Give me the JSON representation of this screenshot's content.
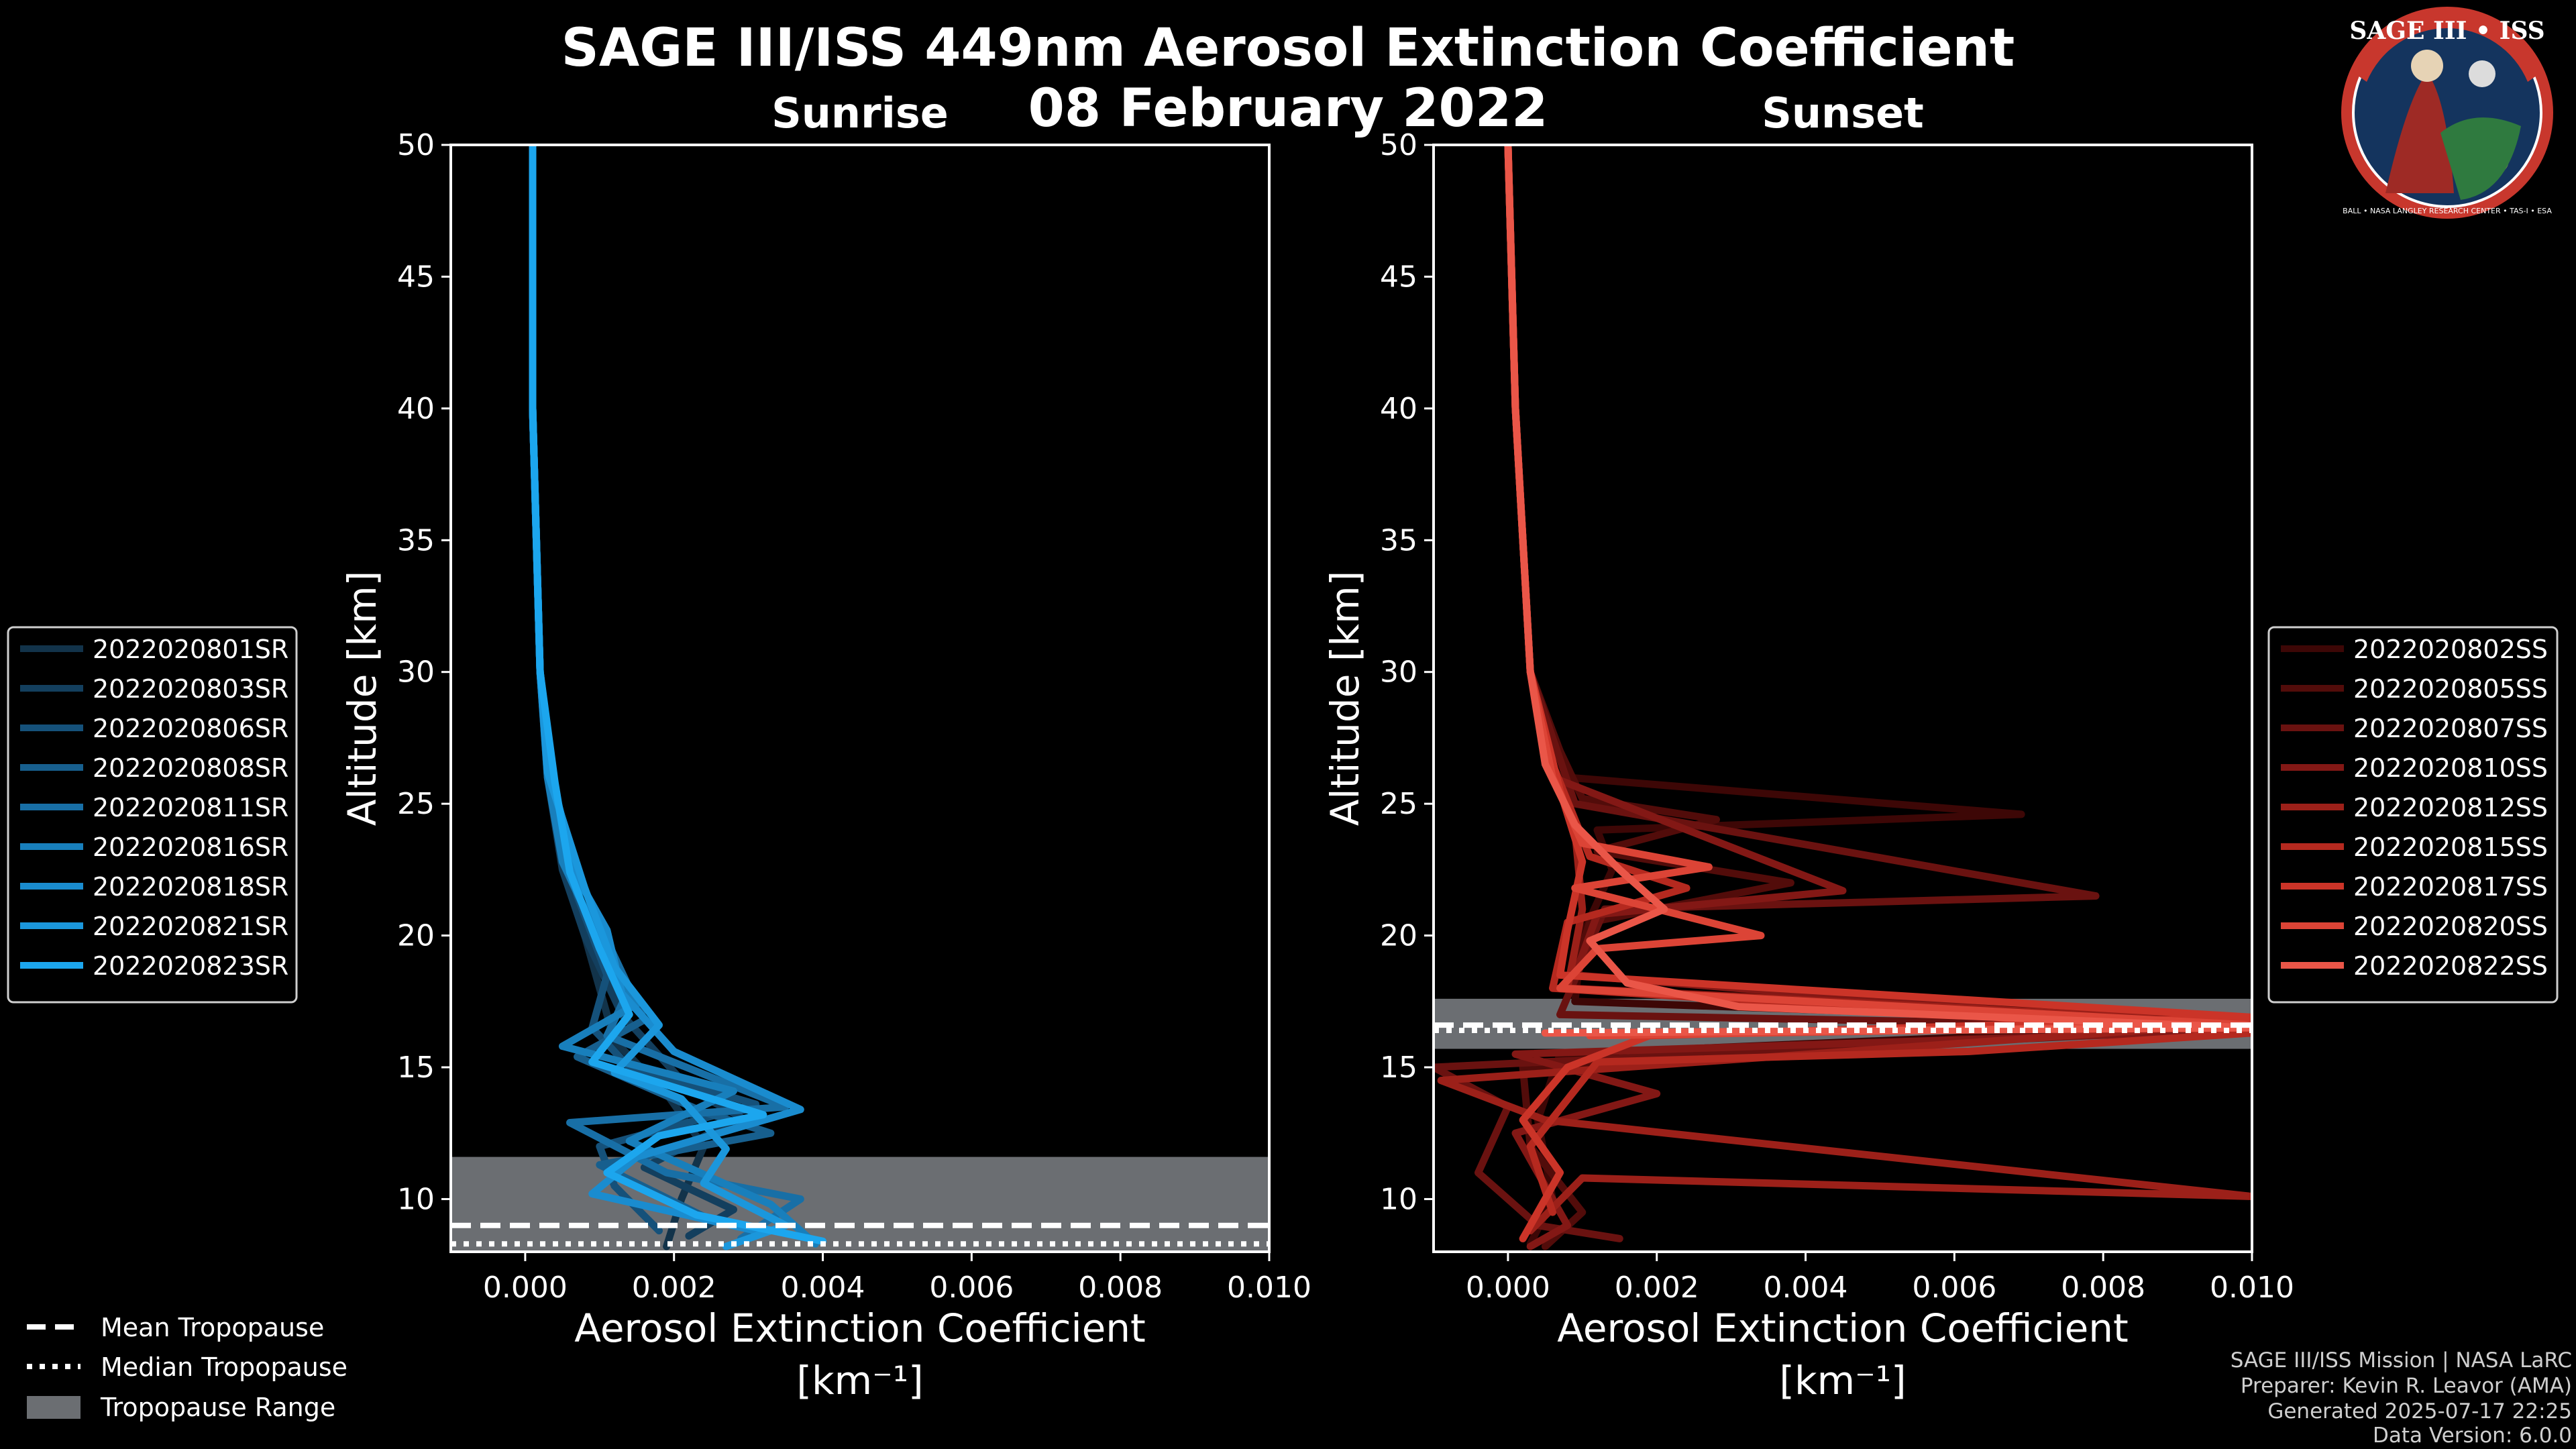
{
  "header": {
    "title": "SAGE III/ISS 449nm Aerosol Extinction Coefficient",
    "date": "08 February 2022"
  },
  "logo": {
    "text": "SAGE III • ISS",
    "caption": "BALL • NASA LANGLEY RESEARCH CENTER • TAS-I • ESA"
  },
  "footer": {
    "line1": "SAGE III/ISS Mission | NASA LaRC",
    "line2": "Preparer: Kevin R. Leavor (AMA)",
    "line3": "Generated 2025-07-17 22:25",
    "line4": "Data Version: 6.0.0"
  },
  "tropopause_legend": [
    "Mean Tropopause",
    "Median Tropopause",
    "Tropopause Range"
  ],
  "colors": {
    "background": "#000000",
    "sunrise": "#1a9ee0",
    "sunset": "#e8574a",
    "tropo_range": "#6b6e72"
  },
  "chart_data": [
    {
      "type": "line",
      "panel": "Sunrise",
      "title": "Sunrise",
      "xlabel": "Aerosol Extinction Coefficient",
      "xunit": "[km⁻¹]",
      "ylabel": "Altitude [km]",
      "xlim": [
        -0.001,
        0.01
      ],
      "ylim": [
        8,
        50
      ],
      "xticks": [
        "0.000",
        "0.002",
        "0.004",
        "0.006",
        "0.008",
        "0.010"
      ],
      "yticks": [
        "10",
        "15",
        "20",
        "25",
        "30",
        "35",
        "40",
        "45",
        "50"
      ],
      "tropopause": {
        "mean": 9.0,
        "median": 8.3,
        "range": [
          8.0,
          11.6
        ]
      },
      "series": [
        {
          "name": "2022020801SR",
          "color": "#12334a",
          "points": [
            [
              0.0001,
              50
            ],
            [
              0.0001,
              40
            ],
            [
              0.0002,
              30
            ],
            [
              0.0003,
              26
            ],
            [
              0.0006,
              22
            ],
            [
              0.0009,
              19
            ],
            [
              0.0012,
              16
            ],
            [
              0.0019,
              14
            ],
            [
              0.0024,
              12
            ],
            [
              0.0021,
              10
            ],
            [
              0.0019,
              8.2
            ]
          ]
        },
        {
          "name": "2022020803SR",
          "color": "#133f5e",
          "points": [
            [
              0.0001,
              50
            ],
            [
              0.0001,
              40
            ],
            [
              0.0002,
              30
            ],
            [
              0.0003,
              26
            ],
            [
              0.0005,
              22.5
            ],
            [
              0.0008,
              20
            ],
            [
              0.0013,
              17
            ],
            [
              0.0022,
              14.2
            ],
            [
              0.0029,
              13.1
            ],
            [
              0.0016,
              11.2
            ],
            [
              0.0028,
              9.6
            ],
            [
              0.0022,
              8.6
            ]
          ]
        },
        {
          "name": "2022020806SR",
          "color": "#15517a",
          "points": [
            [
              0.0001,
              50
            ],
            [
              0.0001,
              40
            ],
            [
              0.0002,
              30
            ],
            [
              0.0004,
              25
            ],
            [
              0.0007,
              21.5
            ],
            [
              0.0011,
              18.5
            ],
            [
              0.0009,
              16.5
            ],
            [
              0.0014,
              15
            ],
            [
              0.0031,
              13.6
            ],
            [
              0.001,
              12
            ],
            [
              0.0012,
              10.5
            ],
            [
              0.0018,
              8.8
            ]
          ]
        },
        {
          "name": "2022020808SR",
          "color": "#175f8e",
          "points": [
            [
              0.0001,
              50
            ],
            [
              0.0001,
              40
            ],
            [
              0.0002,
              30
            ],
            [
              0.0003,
              26.5
            ],
            [
              0.0006,
              23
            ],
            [
              0.0012,
              19.2
            ],
            [
              0.0016,
              16.8
            ],
            [
              0.0007,
              15.4
            ],
            [
              0.0024,
              13.3
            ],
            [
              0.0033,
              12.5
            ],
            [
              0.001,
              11.3
            ],
            [
              0.0025,
              9.2
            ]
          ]
        },
        {
          "name": "2022020811SR",
          "color": "#186fa6",
          "points": [
            [
              0.0001,
              50
            ],
            [
              0.0001,
              40
            ],
            [
              0.0002,
              30
            ],
            [
              0.0004,
              25
            ],
            [
              0.0009,
              21
            ],
            [
              0.0014,
              18
            ],
            [
              0.0011,
              16.2
            ],
            [
              0.0035,
              13.5
            ],
            [
              0.0006,
              12.9
            ],
            [
              0.0019,
              11
            ],
            [
              0.0037,
              10
            ],
            [
              0.0029,
              8.5
            ]
          ]
        },
        {
          "name": "2022020816SR",
          "color": "#187fbc",
          "points": [
            [
              0.0001,
              50
            ],
            [
              0.0001,
              40
            ],
            [
              0.0002,
              30
            ],
            [
              0.0003,
              26
            ],
            [
              0.0005,
              22.8
            ],
            [
              0.001,
              19.8
            ],
            [
              0.0015,
              17.4
            ],
            [
              0.0005,
              15.8
            ],
            [
              0.0028,
              14.1
            ],
            [
              0.0014,
              12.2
            ],
            [
              0.0033,
              9.8
            ],
            [
              0.0039,
              8.3
            ]
          ]
        },
        {
          "name": "2022020818SR",
          "color": "#1a8ccf",
          "points": [
            [
              0.0001,
              50
            ],
            [
              0.0001,
              40
            ],
            [
              0.0002,
              30
            ],
            [
              0.0004,
              25.5
            ],
            [
              0.0007,
              22.2
            ],
            [
              0.0011,
              20.2
            ],
            [
              0.0013,
              17.8
            ],
            [
              0.002,
              15.6
            ],
            [
              0.0037,
              13.4
            ],
            [
              0.0015,
              11.6
            ],
            [
              0.0009,
              10.2
            ],
            [
              0.0031,
              8.8
            ]
          ]
        },
        {
          "name": "2022020821SR",
          "color": "#1b97dc",
          "points": [
            [
              0.0001,
              50
            ],
            [
              0.0001,
              40
            ],
            [
              0.0002,
              30
            ],
            [
              0.0003,
              26.2
            ],
            [
              0.0008,
              21.8
            ],
            [
              0.0012,
              18.8
            ],
            [
              0.0018,
              16.6
            ],
            [
              0.0012,
              14.8
            ],
            [
              0.0021,
              13.8
            ],
            [
              0.0027,
              11.9
            ],
            [
              0.0024,
              10.6
            ],
            [
              0.0035,
              9.0
            ],
            [
              0.0027,
              8.2
            ]
          ]
        },
        {
          "name": "2022020823SR",
          "color": "#1ca6ee",
          "points": [
            [
              0.0001,
              50
            ],
            [
              0.0001,
              40
            ],
            [
              0.0002,
              30
            ],
            [
              0.0004,
              25.8
            ],
            [
              0.0006,
              22.4
            ],
            [
              0.001,
              19.5
            ],
            [
              0.0014,
              17.0
            ],
            [
              0.0009,
              15.2
            ],
            [
              0.0032,
              13.2
            ],
            [
              0.0018,
              12.4
            ],
            [
              0.0011,
              11.0
            ],
            [
              0.0023,
              9.4
            ],
            [
              0.004,
              8.4
            ]
          ]
        }
      ]
    },
    {
      "type": "line",
      "panel": "Sunset",
      "title": "Sunset",
      "xlabel": "Aerosol Extinction Coefficient",
      "xunit": "[km⁻¹]",
      "ylabel": "Altitude [km]",
      "xlim": [
        -0.001,
        0.01
      ],
      "ylim": [
        8,
        50
      ],
      "xticks": [
        "0.000",
        "0.002",
        "0.004",
        "0.006",
        "0.008",
        "0.010"
      ],
      "yticks": [
        "10",
        "15",
        "20",
        "25",
        "30",
        "35",
        "40",
        "45",
        "50"
      ],
      "tropopause": {
        "mean": 16.6,
        "median": 16.4,
        "range": [
          15.7,
          17.6
        ]
      },
      "series": [
        {
          "name": "2022020802SS",
          "color": "#3d0706",
          "points": [
            [
              0.0,
              50
            ],
            [
              0.0001,
              40
            ],
            [
              0.0003,
              30
            ],
            [
              0.0008,
              26
            ],
            [
              0.0069,
              24.6
            ],
            [
              0.0012,
              24
            ],
            [
              0.0014,
              22.5
            ],
            [
              0.001,
              20
            ],
            [
              0.0009,
              17.5
            ],
            [
              0.01,
              16.6
            ],
            [
              0.0007,
              15.5
            ],
            [
              0.0004,
              13
            ],
            [
              0.0006,
              10
            ],
            [
              0.0003,
              8.3
            ]
          ]
        },
        {
          "name": "2022020805SS",
          "color": "#520c0a",
          "points": [
            [
              0.0,
              50
            ],
            [
              0.0001,
              40
            ],
            [
              0.0003,
              30
            ],
            [
              0.0007,
              27
            ],
            [
              0.001,
              25.2
            ],
            [
              0.0028,
              24.4
            ],
            [
              0.0012,
              23.2
            ],
            [
              0.0038,
              22
            ],
            [
              0.0011,
              20.5
            ],
            [
              0.0008,
              18
            ],
            [
              0.01,
              16.8
            ],
            [
              0.0002,
              15
            ],
            [
              0.0003,
              12
            ],
            [
              0.001,
              9.5
            ],
            [
              0.0005,
              8.2
            ]
          ]
        },
        {
          "name": "2022020807SS",
          "color": "#6a1210",
          "points": [
            [
              0.0,
              50
            ],
            [
              0.0001,
              40
            ],
            [
              0.0003,
              30
            ],
            [
              0.0009,
              25
            ],
            [
              0.0079,
              21.5
            ],
            [
              0.0013,
              21
            ],
            [
              0.001,
              19
            ],
            [
              0.0007,
              17
            ],
            [
              0.01,
              16.5
            ],
            [
              -0.001,
              15
            ],
            [
              0.0,
              13.5
            ],
            [
              -0.0004,
              11
            ],
            [
              0.0004,
              9
            ],
            [
              0.0015,
              8.5
            ]
          ]
        },
        {
          "name": "2022020810SS",
          "color": "#831815",
          "points": [
            [
              0.0,
              50
            ],
            [
              0.0001,
              40
            ],
            [
              0.0003,
              30
            ],
            [
              0.0006,
              26
            ],
            [
              0.0045,
              21.7
            ],
            [
              0.0012,
              20.8
            ],
            [
              0.0009,
              18.5
            ],
            [
              0.01,
              16.4
            ],
            [
              0.0001,
              15.5
            ],
            [
              0.002,
              14
            ],
            [
              0.0001,
              12.5
            ],
            [
              0.0008,
              9
            ],
            [
              0.0003,
              8.2
            ]
          ]
        },
        {
          "name": "2022020812SS",
          "color": "#9c2019",
          "points": [
            [
              0.0,
              50
            ],
            [
              0.0001,
              40
            ],
            [
              0.0003,
              30
            ],
            [
              0.0005,
              27
            ],
            [
              0.0009,
              24
            ],
            [
              0.001,
              21
            ],
            [
              0.0008,
              18
            ],
            [
              0.01,
              16.7
            ],
            [
              -0.0009,
              14.5
            ],
            [
              0.0005,
              13
            ],
            [
              0.01,
              10.1
            ],
            [
              0.001,
              10.8
            ],
            [
              0.0003,
              8.8
            ]
          ]
        },
        {
          "name": "2022020815SS",
          "color": "#b5291f",
          "points": [
            [
              0.0,
              50
            ],
            [
              0.0001,
              40
            ],
            [
              0.0003,
              30
            ],
            [
              0.0006,
              26.5
            ],
            [
              0.0011,
              23
            ],
            [
              0.0024,
              21.8
            ],
            [
              0.0008,
              20.5
            ],
            [
              0.0006,
              18
            ],
            [
              0.01,
              16.3
            ],
            [
              0.0062,
              15.6
            ],
            [
              0.0012,
              15.2
            ],
            [
              0.0003,
              12
            ],
            [
              0.0006,
              9.5
            ]
          ]
        },
        {
          "name": "2022020817SS",
          "color": "#cb3428",
          "points": [
            [
              0.0,
              50
            ],
            [
              0.0001,
              40
            ],
            [
              0.0003,
              30
            ],
            [
              0.0007,
              25.5
            ],
            [
              0.001,
              22.8
            ],
            [
              0.0008,
              20.2
            ],
            [
              0.0007,
              18.5
            ],
            [
              0.01,
              16.9
            ],
            [
              0.0019,
              16.2
            ],
            [
              0.0008,
              15
            ],
            [
              0.0002,
              13
            ],
            [
              0.0007,
              11
            ],
            [
              0.0002,
              8.5
            ]
          ]
        },
        {
          "name": "2022020820SS",
          "color": "#dc4436",
          "points": [
            [
              0.0,
              50
            ],
            [
              0.0001,
              40
            ],
            [
              0.0003,
              30
            ],
            [
              0.0006,
              26
            ],
            [
              0.001,
              23.5
            ],
            [
              0.0027,
              22.6
            ],
            [
              0.0009,
              21.8
            ],
            [
              0.0034,
              20
            ],
            [
              0.0012,
              19.5
            ],
            [
              0.0007,
              18
            ],
            [
              0.01,
              16.6
            ],
            [
              0.0011,
              16.2
            ]
          ]
        },
        {
          "name": "2022020822SS",
          "color": "#ea5648",
          "points": [
            [
              0.0,
              50
            ],
            [
              0.0001,
              40
            ],
            [
              0.0003,
              30
            ],
            [
              0.0005,
              26.5
            ],
            [
              0.0009,
              24.2
            ],
            [
              0.0015,
              22.5
            ],
            [
              0.0021,
              21
            ],
            [
              0.0011,
              19.8
            ],
            [
              0.0016,
              18.2
            ],
            [
              0.0031,
              17.3
            ],
            [
              0.01,
              16.5
            ],
            [
              0.0005,
              16.3
            ]
          ]
        }
      ]
    }
  ]
}
